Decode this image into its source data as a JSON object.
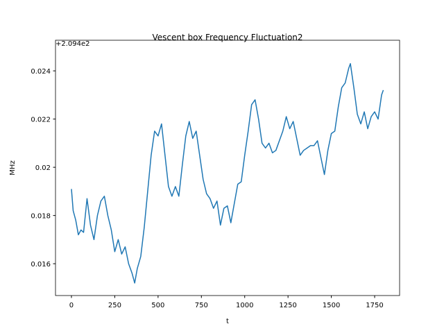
{
  "chart_data": {
    "type": "line",
    "title": "Vescent box Frequency Fluctuation2",
    "x_label": "t",
    "y_label": "MHz",
    "y_offset_label": "+2.094e2",
    "x": [
      0,
      10,
      25,
      40,
      55,
      70,
      90,
      110,
      130,
      150,
      170,
      190,
      210,
      230,
      250,
      270,
      290,
      310,
      330,
      350,
      365,
      380,
      400,
      420,
      440,
      460,
      480,
      500,
      520,
      540,
      560,
      580,
      600,
      620,
      640,
      660,
      680,
      700,
      720,
      740,
      760,
      780,
      800,
      820,
      840,
      860,
      880,
      900,
      920,
      940,
      960,
      980,
      1000,
      1020,
      1040,
      1060,
      1080,
      1100,
      1120,
      1140,
      1160,
      1180,
      1200,
      1220,
      1240,
      1260,
      1280,
      1300,
      1320,
      1340,
      1360,
      1380,
      1400,
      1420,
      1440,
      1460,
      1480,
      1500,
      1520,
      1540,
      1560,
      1580,
      1600,
      1610,
      1630,
      1650,
      1670,
      1690,
      1710,
      1730,
      1750,
      1770,
      1790,
      1800
    ],
    "series": [
      {
        "name": "frequency",
        "color": "#1f77b4",
        "values": [
          0.0191,
          0.0182,
          0.0178,
          0.0172,
          0.0174,
          0.0173,
          0.0187,
          0.0176,
          0.017,
          0.018,
          0.0186,
          0.0188,
          0.018,
          0.0174,
          0.0165,
          0.017,
          0.0164,
          0.0167,
          0.016,
          0.0156,
          0.0152,
          0.0158,
          0.0163,
          0.0175,
          0.019,
          0.0205,
          0.0215,
          0.0213,
          0.0218,
          0.0205,
          0.0192,
          0.0188,
          0.0192,
          0.0188,
          0.0201,
          0.0213,
          0.0219,
          0.0212,
          0.0215,
          0.0205,
          0.0195,
          0.0189,
          0.0187,
          0.0183,
          0.0186,
          0.0176,
          0.0183,
          0.0184,
          0.0177,
          0.0185,
          0.0193,
          0.0194,
          0.0205,
          0.0215,
          0.0226,
          0.0228,
          0.022,
          0.021,
          0.0208,
          0.021,
          0.0206,
          0.0207,
          0.0211,
          0.0215,
          0.0221,
          0.0216,
          0.0219,
          0.0212,
          0.0205,
          0.0207,
          0.0208,
          0.0209,
          0.0209,
          0.0211,
          0.0204,
          0.0197,
          0.0207,
          0.0214,
          0.0215,
          0.0225,
          0.0233,
          0.0235,
          0.0241,
          0.0243,
          0.0233,
          0.0222,
          0.0218,
          0.0223,
          0.0216,
          0.0221,
          0.0223,
          0.022,
          0.023,
          0.0232
        ]
      }
    ],
    "xlim": [
      -92,
      1894
    ],
    "ylim": [
      0.01468,
      0.02527
    ],
    "xticks": [
      0,
      250,
      500,
      750,
      1000,
      1250,
      1500,
      1750
    ],
    "yticks": [
      0.016,
      0.018,
      0.02,
      0.022,
      0.024
    ],
    "grid": false
  }
}
